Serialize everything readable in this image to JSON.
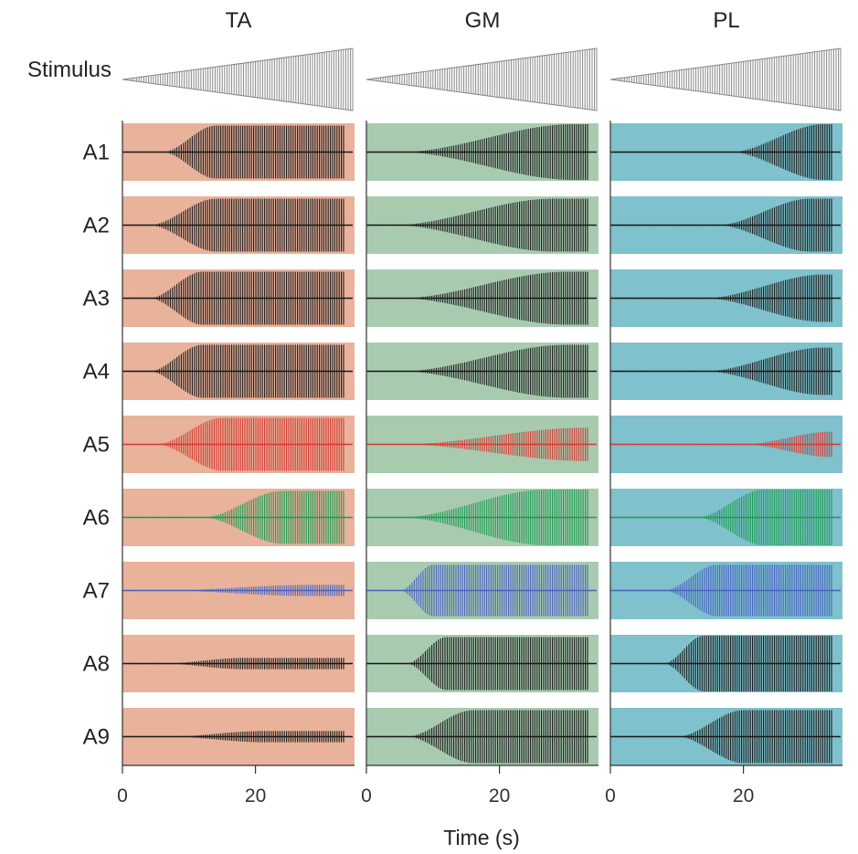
{
  "chart_data": {
    "type": "line",
    "description_kind": "multi-panel EMG amplitude traces",
    "columns": [
      {
        "key": "TA",
        "label": "TA",
        "panel_color": "#e8b29b"
      },
      {
        "key": "GM",
        "label": "GM",
        "panel_color": "#a8cbb0"
      },
      {
        "key": "PL",
        "label": "PL",
        "panel_color": "#7fc1cc"
      }
    ],
    "stimulus": {
      "label": "Stimulus",
      "color": "#888888",
      "start_s": 0,
      "end_s": 35,
      "peak_amplitude": 1.0
    },
    "rows": [
      {
        "label": "A1",
        "color": "#1a1a1a",
        "TA": {
          "onset_s": 6,
          "rise_s": 8,
          "max": 0.95,
          "end_s": 33.5
        },
        "GM": {
          "onset_s": 5,
          "rise_s": 26,
          "max": 1.0,
          "end_s": 33.5
        },
        "PL": {
          "onset_s": 18,
          "rise_s": 14,
          "max": 1.0,
          "end_s": 33.5
        }
      },
      {
        "label": "A2",
        "color": "#1a1a1a",
        "TA": {
          "onset_s": 4,
          "rise_s": 10,
          "max": 0.95,
          "end_s": 33.5
        },
        "GM": {
          "onset_s": 4,
          "rise_s": 24,
          "max": 0.95,
          "end_s": 33.5
        },
        "PL": {
          "onset_s": 16,
          "rise_s": 14,
          "max": 0.95,
          "end_s": 33.5
        }
      },
      {
        "label": "A3",
        "color": "#1a1a1a",
        "TA": {
          "onset_s": 4,
          "rise_s": 8,
          "max": 0.95,
          "end_s": 33.5
        },
        "GM": {
          "onset_s": 5,
          "rise_s": 25,
          "max": 0.95,
          "end_s": 33.5
        },
        "PL": {
          "onset_s": 14,
          "rise_s": 18,
          "max": 0.85,
          "end_s": 33.5
        }
      },
      {
        "label": "A4",
        "color": "#1a1a1a",
        "TA": {
          "onset_s": 4,
          "rise_s": 8,
          "max": 0.95,
          "end_s": 33.5
        },
        "GM": {
          "onset_s": 5,
          "rise_s": 25,
          "max": 0.95,
          "end_s": 33.5
        },
        "PL": {
          "onset_s": 14,
          "rise_s": 18,
          "max": 0.85,
          "end_s": 33.5
        }
      },
      {
        "label": "A5",
        "color": "#d23b33",
        "TA": {
          "onset_s": 5,
          "rise_s": 10,
          "max": 0.95,
          "end_s": 33.5
        },
        "GM": {
          "onset_s": 5,
          "rise_s": 28,
          "max": 0.6,
          "end_s": 33.5
        },
        "PL": {
          "onset_s": 20,
          "rise_s": 13,
          "max": 0.45,
          "end_s": 33.5
        }
      },
      {
        "label": "A6",
        "color": "#1e9b53",
        "TA": {
          "onset_s": 12,
          "rise_s": 12,
          "max": 0.95,
          "end_s": 33.5
        },
        "GM": {
          "onset_s": 5,
          "rise_s": 22,
          "max": 1.0,
          "end_s": 33.5
        },
        "PL": {
          "onset_s": 13,
          "rise_s": 10,
          "max": 1.0,
          "end_s": 33.5
        }
      },
      {
        "label": "A7",
        "color": "#4a63c0",
        "TA": {
          "onset_s": 6,
          "rise_s": 22,
          "max": 0.2,
          "end_s": 33.5
        },
        "GM": {
          "onset_s": 5,
          "rise_s": 5,
          "max": 0.92,
          "end_s": 33.5
        },
        "PL": {
          "onset_s": 8,
          "rise_s": 8,
          "max": 0.92,
          "end_s": 33.5
        }
      },
      {
        "label": "A8",
        "color": "#1a1a1a",
        "TA": {
          "onset_s": 6,
          "rise_s": 12,
          "max": 0.2,
          "end_s": 33.5
        },
        "GM": {
          "onset_s": 6,
          "rise_s": 6,
          "max": 0.95,
          "end_s": 33.5
        },
        "PL": {
          "onset_s": 8,
          "rise_s": 6,
          "max": 1.0,
          "end_s": 33.5
        }
      },
      {
        "label": "A9",
        "color": "#1a1a1a",
        "TA": {
          "onset_s": 7,
          "rise_s": 14,
          "max": 0.2,
          "end_s": 33.5
        },
        "GM": {
          "onset_s": 6,
          "rise_s": 10,
          "max": 0.95,
          "end_s": 33.5
        },
        "PL": {
          "onset_s": 10,
          "rise_s": 10,
          "max": 0.95,
          "end_s": 33.5
        }
      }
    ],
    "x_axis": {
      "label": "Time (s)",
      "ticks": [
        0,
        20
      ],
      "tick_labels": [
        "0",
        "20"
      ],
      "range": [
        0,
        35
      ]
    },
    "grid": false
  }
}
